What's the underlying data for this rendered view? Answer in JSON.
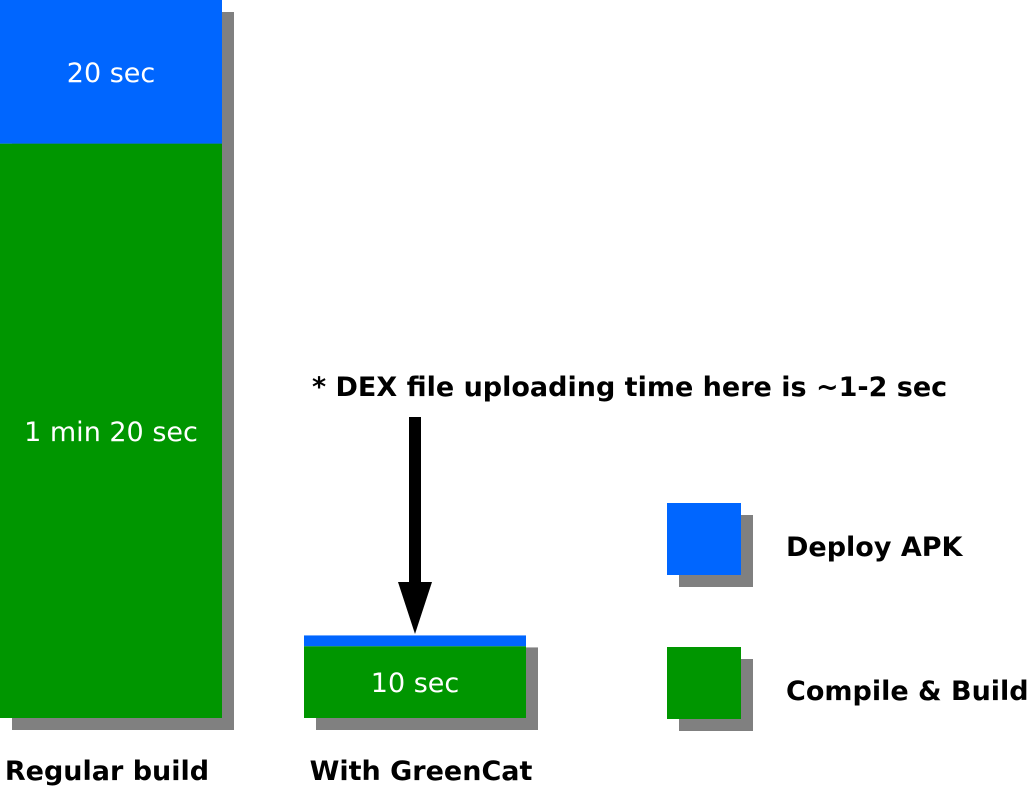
{
  "chart_data": {
    "type": "bar",
    "stacked": true,
    "categories": [
      "Regular build",
      "With GreenCat"
    ],
    "series": [
      {
        "name": "Compile & Build",
        "color": "#009600",
        "values": [
          80,
          10
        ],
        "labels": [
          "1 min 20 sec",
          "10 sec"
        ]
      },
      {
        "name": "Deploy APK",
        "color": "#0066ff",
        "values": [
          20,
          1.5
        ],
        "labels": [
          "20 sec",
          ""
        ]
      }
    ],
    "ylim": [
      0,
      100
    ],
    "grid": false,
    "legend_placement": "right",
    "annotation": "* DEX file uploading time here is ~1-2 sec",
    "shadow_color": "#808080",
    "arrow_color": "#000000"
  }
}
